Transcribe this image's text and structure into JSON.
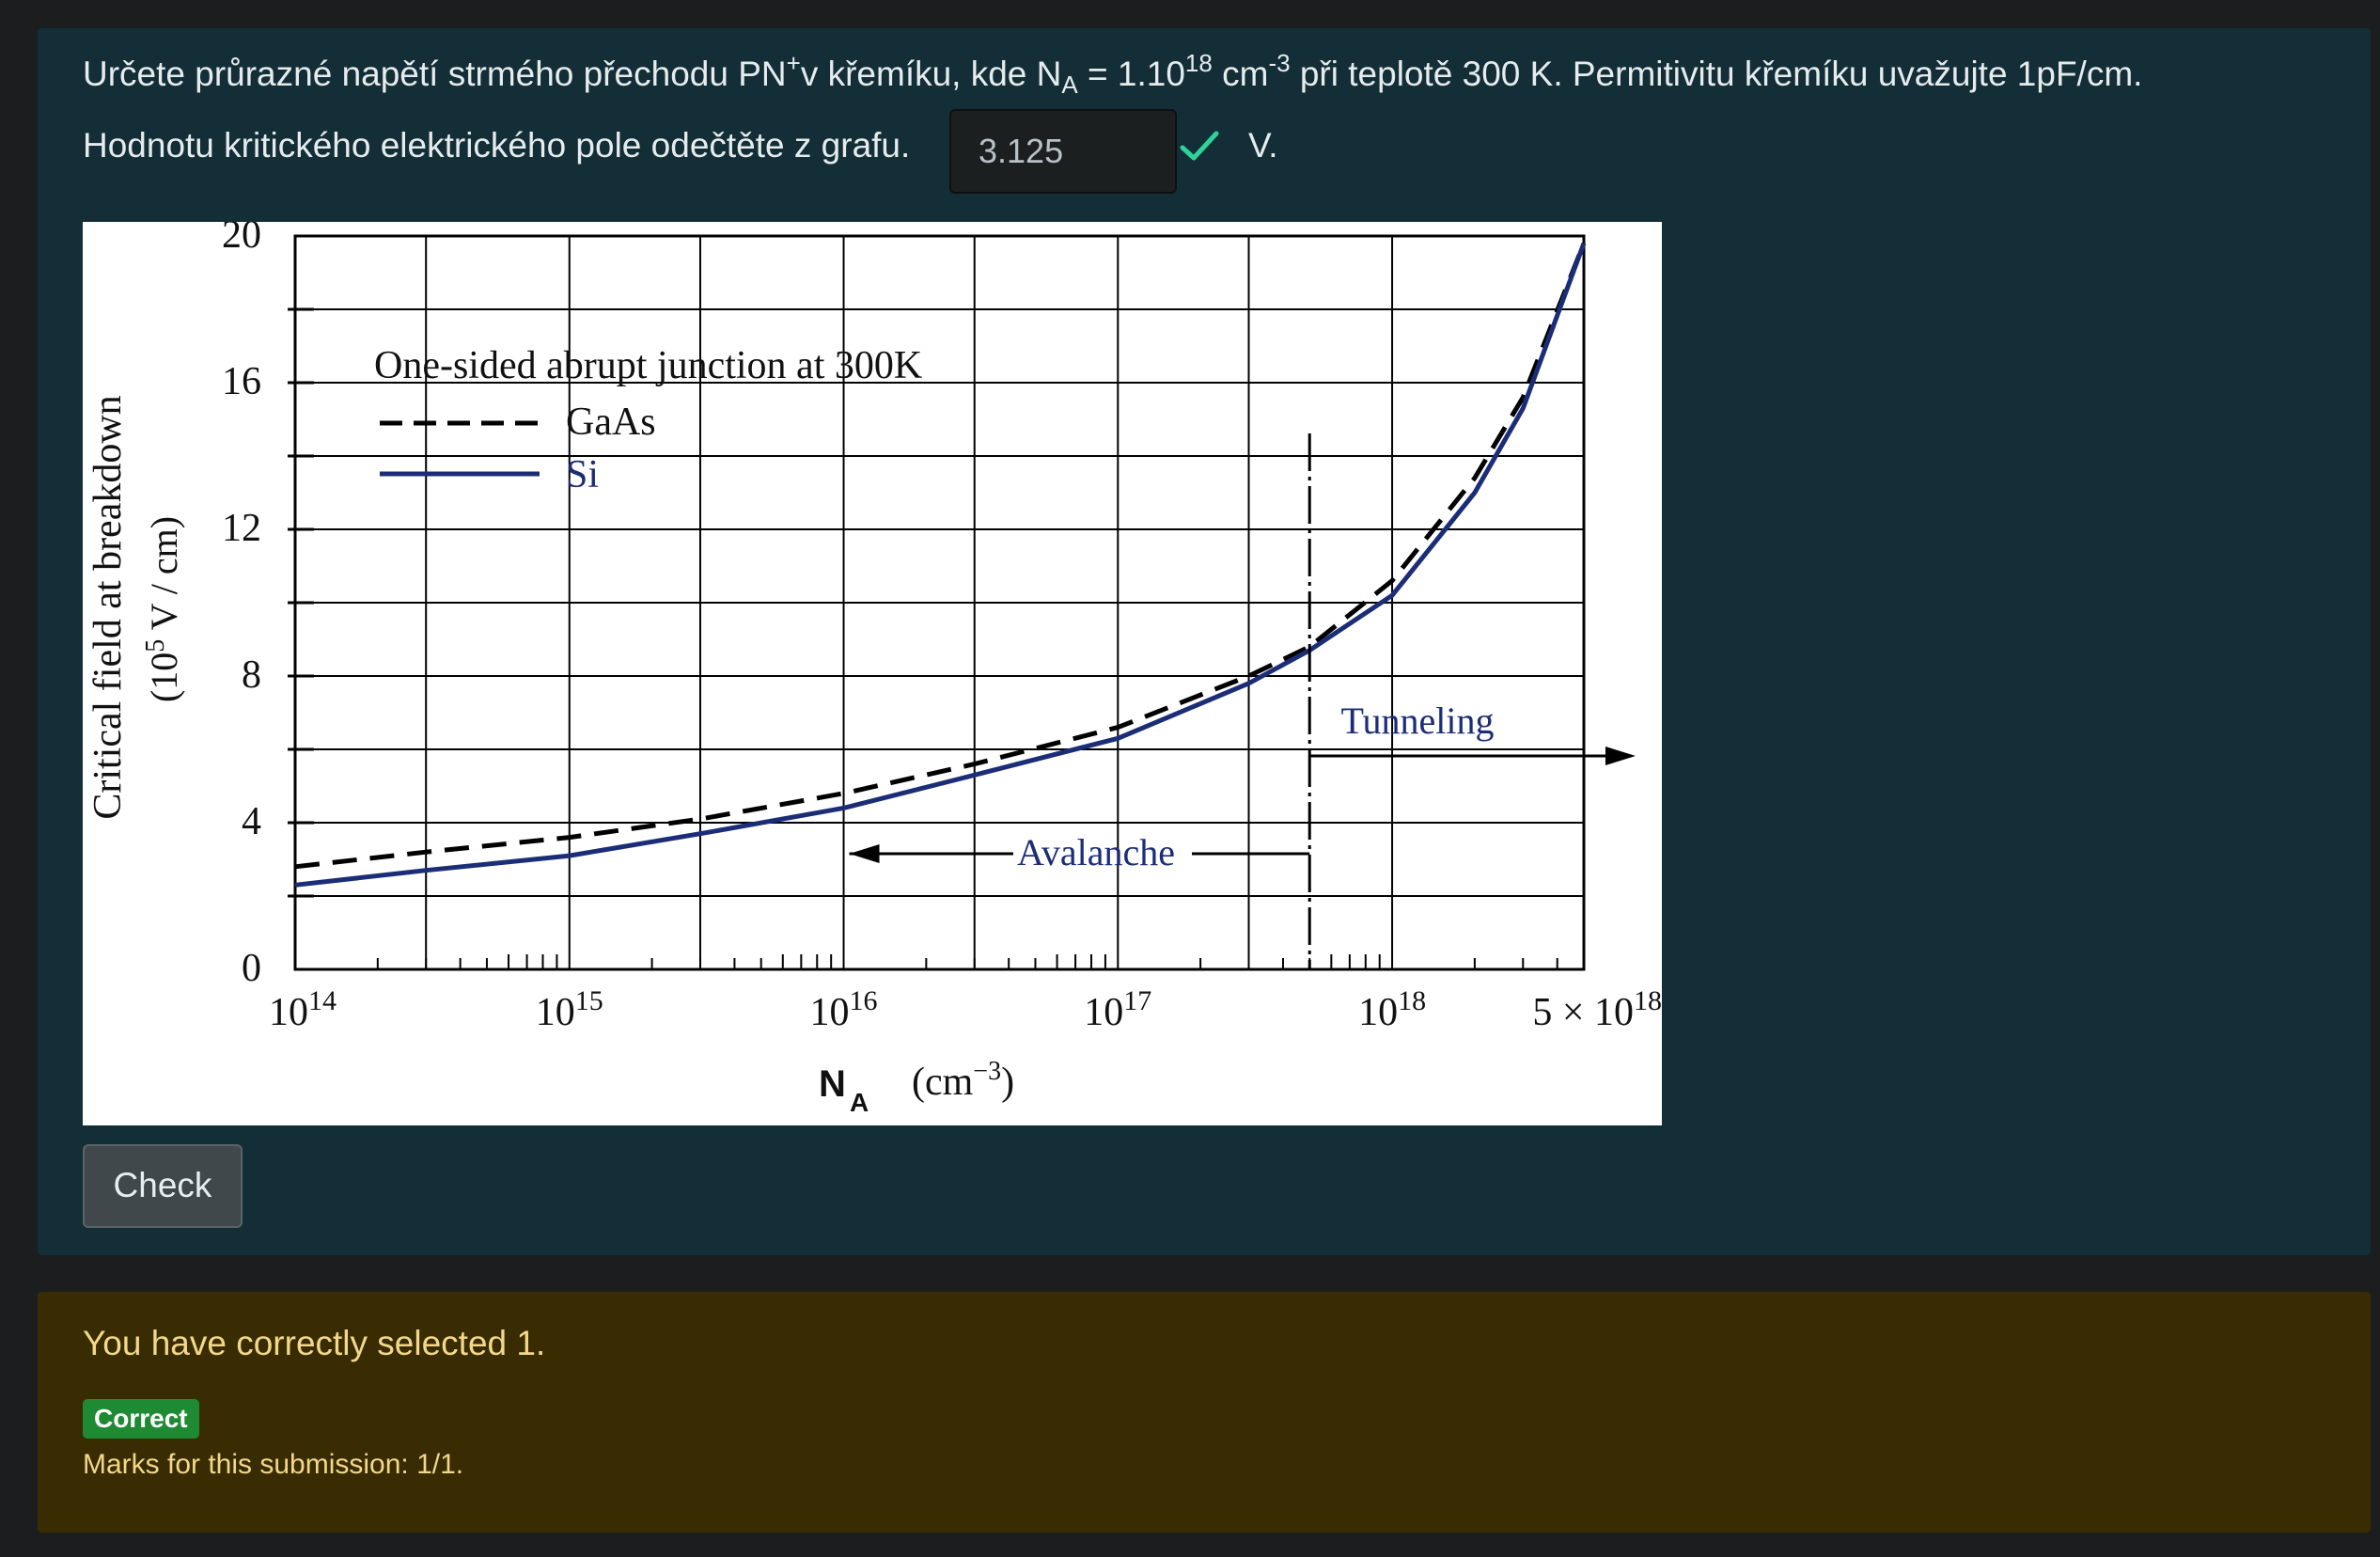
{
  "question": {
    "line1": {
      "part1": "Určete průrazné napětí strmého přechodu PN",
      "sup_plus": "+",
      "part2": "v křemíku, kde N",
      "sub_a": "A",
      "part3": " = 1.10",
      "sup_18": "18",
      "part4": " cm",
      "sup_m3": "-3",
      "part5": " při teplotě 300 K. Permitivitu křemíku uvažujte 1pF/cm."
    },
    "line2": "Hodnotu kritického elektrického pole odečtěte z grafu.",
    "answer_value": "3.125",
    "unit": "V.",
    "check_label": "Check"
  },
  "feedback": {
    "message": "You have correctly selected 1.",
    "badge": "Correct",
    "marks": "Marks for this submission: 1/1."
  },
  "colors": {
    "card_bg": "#132e36",
    "feedback_bg": "#3a2c02",
    "correct_check": "#2fd39a",
    "si_line": "#1c2d78",
    "badge_green": "#1f8a34"
  },
  "chart_data": {
    "type": "line",
    "title": "One-sided abrupt junction at 300K",
    "ylabel_line1": "Critical field at breakdown",
    "ylabel_line2_pre": "(10",
    "ylabel_line2_sup": "5",
    "ylabel_line2_post": " V / cm)",
    "xlabel_main": "N",
    "xlabel_sub": "A",
    "xlabel_unit_pre": "(cm",
    "xlabel_unit_sup": "−3",
    "xlabel_unit_post": ")",
    "x_scale": "log",
    "xlim": [
      100000000000000.0,
      5e+18
    ],
    "ylim": [
      0,
      20
    ],
    "y_ticks": [
      0,
      4,
      8,
      12,
      16,
      20
    ],
    "y_tick_labels": [
      "0",
      "4",
      "8",
      "12",
      "16",
      "20"
    ],
    "x_tick_labels": [
      {
        "x": 100000000000000.0,
        "base": "10",
        "exp": "14"
      },
      {
        "x": 1000000000000000.0,
        "base": "10",
        "exp": "15"
      },
      {
        "x": 1e+16,
        "base": "10",
        "exp": "16"
      },
      {
        "x": 1e+17,
        "base": "10",
        "exp": "17"
      },
      {
        "x": 1e+18,
        "base": "10",
        "exp": "18"
      },
      {
        "x": 5e+18,
        "base": "5 × 10",
        "exp": "18"
      }
    ],
    "series": [
      {
        "name": "GaAs",
        "style": "dashed",
        "x": [
          100000000000000.0,
          300000000000000.0,
          1000000000000000.0,
          3000000000000000.0,
          1e+16,
          3e+16,
          1e+17,
          3e+17,
          5e+17,
          1e+18,
          2e+18,
          3e+18,
          5e+18
        ],
        "y": [
          2.8,
          3.2,
          3.6,
          4.1,
          4.8,
          5.6,
          6.6,
          8.0,
          8.8,
          10.6,
          13.4,
          15.6,
          19.8
        ]
      },
      {
        "name": "Si",
        "style": "solid",
        "x": [
          100000000000000.0,
          300000000000000.0,
          1000000000000000.0,
          3000000000000000.0,
          1e+16,
          3e+16,
          1e+17,
          3e+17,
          5e+17,
          1e+18,
          2e+18,
          3e+18,
          5e+18
        ],
        "y": [
          2.3,
          2.7,
          3.1,
          3.7,
          4.4,
          5.3,
          6.3,
          7.8,
          8.7,
          10.2,
          13.0,
          15.3,
          19.8
        ]
      }
    ],
    "boundary_x": 5e+17,
    "annotations": {
      "avalanche": "Avalanche",
      "tunneling": "Tunneling"
    },
    "grid": true
  }
}
